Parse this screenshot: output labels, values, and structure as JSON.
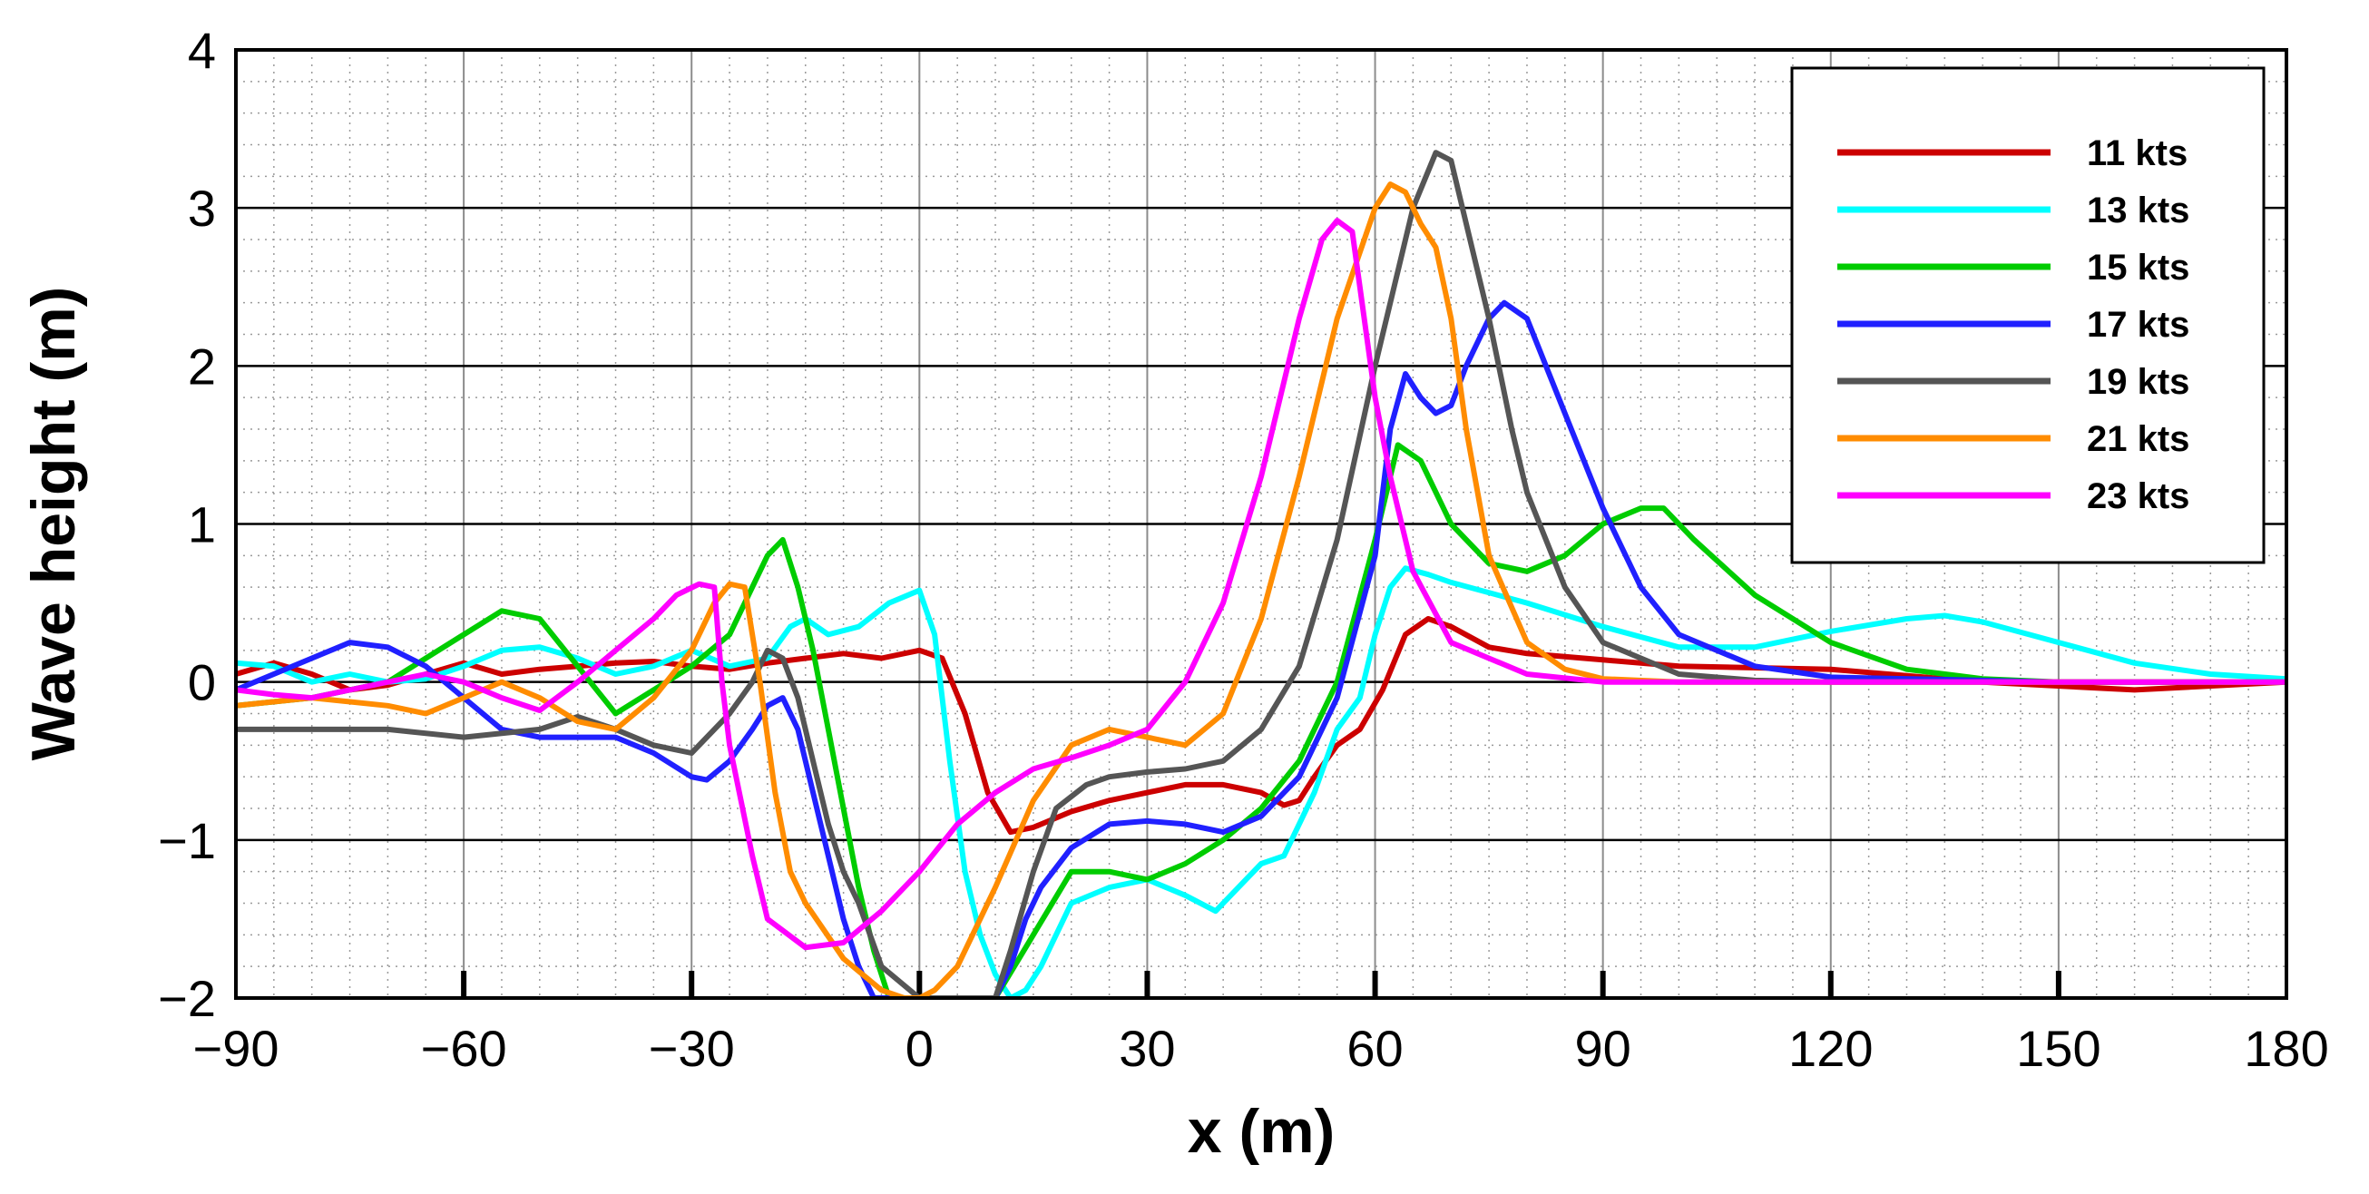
{
  "chart_data": {
    "type": "line",
    "title": "",
    "xlabel": "x (m)",
    "ylabel": "Wave height (m)",
    "xlim": [
      -90,
      180
    ],
    "ylim": [
      -2,
      4
    ],
    "xticks": [
      -90,
      -60,
      -30,
      0,
      30,
      60,
      90,
      120,
      150,
      180
    ],
    "yticks": [
      -2,
      -1,
      0,
      1,
      2,
      3,
      4
    ],
    "xtick_labels": [
      "−90",
      "−60",
      "−30",
      "0",
      "30",
      "60",
      "90",
      "120",
      "150",
      "180"
    ],
    "ytick_labels": [
      "−2",
      "−1",
      "0",
      "1",
      "2",
      "3",
      "4"
    ],
    "grid": true,
    "legend_position": "top-right",
    "series": [
      {
        "name": "11 kts",
        "color": "#cc0000",
        "x": [
          -90,
          -85,
          -80,
          -75,
          -70,
          -65,
          -60,
          -55,
          -50,
          -45,
          -40,
          -35,
          -30,
          -25,
          -20,
          -15,
          -10,
          -5,
          0,
          3,
          6,
          9,
          12,
          15,
          20,
          25,
          30,
          35,
          40,
          45,
          48,
          50,
          52,
          55,
          58,
          61,
          64,
          67,
          70,
          75,
          80,
          90,
          100,
          120,
          140,
          160,
          180
        ],
        "y": [
          0.05,
          0.12,
          0.05,
          -0.05,
          -0.02,
          0.05,
          0.12,
          0.05,
          0.08,
          0.1,
          0.12,
          0.13,
          0.1,
          0.08,
          0.12,
          0.15,
          0.18,
          0.15,
          0.2,
          0.15,
          -0.2,
          -0.7,
          -0.95,
          -0.92,
          -0.82,
          -0.75,
          -0.7,
          -0.65,
          -0.65,
          -0.7,
          -0.78,
          -0.75,
          -0.6,
          -0.4,
          -0.3,
          -0.05,
          0.3,
          0.4,
          0.35,
          0.22,
          0.18,
          0.14,
          0.1,
          0.08,
          0.0,
          -0.05,
          0.0
        ]
      },
      {
        "name": "13 kts",
        "color": "#00ffff",
        "x": [
          -90,
          -85,
          -80,
          -75,
          -70,
          -65,
          -60,
          -55,
          -50,
          -45,
          -40,
          -35,
          -30,
          -25,
          -20,
          -17,
          -15,
          -12,
          -8,
          -4,
          0,
          2,
          4,
          6,
          8,
          10,
          12,
          14,
          16,
          20,
          25,
          30,
          35,
          39,
          42,
          45,
          48,
          52,
          55,
          58,
          60,
          62,
          64,
          67,
          70,
          80,
          90,
          100,
          110,
          120,
          130,
          135,
          140,
          150,
          160,
          170,
          180
        ],
        "y": [
          0.12,
          0.1,
          0.0,
          0.05,
          0.0,
          0.02,
          0.1,
          0.2,
          0.22,
          0.15,
          0.05,
          0.1,
          0.2,
          0.1,
          0.15,
          0.35,
          0.4,
          0.3,
          0.35,
          0.5,
          0.58,
          0.3,
          -0.5,
          -1.2,
          -1.6,
          -1.85,
          -2.0,
          -1.95,
          -1.8,
          -1.4,
          -1.3,
          -1.25,
          -1.35,
          -1.45,
          -1.3,
          -1.15,
          -1.1,
          -0.7,
          -0.3,
          -0.1,
          0.3,
          0.6,
          0.72,
          0.68,
          0.63,
          0.5,
          0.35,
          0.22,
          0.22,
          0.32,
          0.4,
          0.42,
          0.38,
          0.25,
          0.12,
          0.05,
          0.02
        ]
      },
      {
        "name": "15 kts",
        "color": "#00cc00",
        "x": [
          -90,
          -80,
          -70,
          -60,
          -55,
          -50,
          -45,
          -40,
          -35,
          -30,
          -25,
          -20,
          -18,
          -16,
          -14,
          -12,
          -10,
          -8,
          -6,
          -4,
          0,
          10,
          15,
          20,
          25,
          30,
          35,
          40,
          45,
          50,
          55,
          60,
          63,
          66,
          70,
          75,
          80,
          85,
          90,
          95,
          98,
          102,
          110,
          120,
          130,
          140,
          150,
          160,
          170,
          180
        ],
        "y": [
          -0.15,
          -0.1,
          0.0,
          0.3,
          0.45,
          0.4,
          0.1,
          -0.2,
          -0.05,
          0.1,
          0.3,
          0.8,
          0.9,
          0.6,
          0.2,
          -0.3,
          -0.8,
          -1.3,
          -1.7,
          -2.0,
          -2.0,
          -2.0,
          -1.6,
          -1.2,
          -1.2,
          -1.25,
          -1.15,
          -1.0,
          -0.8,
          -0.5,
          0.0,
          0.9,
          1.5,
          1.4,
          1.0,
          0.75,
          0.7,
          0.8,
          1.0,
          1.1,
          1.1,
          0.9,
          0.55,
          0.25,
          0.08,
          0.02,
          0.0,
          0.0,
          0.0,
          0.0
        ]
      },
      {
        "name": "17 kts",
        "color": "#2020ff",
        "x": [
          -90,
          -80,
          -75,
          -70,
          -65,
          -60,
          -55,
          -50,
          -45,
          -40,
          -35,
          -30,
          -28,
          -25,
          -22,
          -20,
          -18,
          -16,
          -14,
          -12,
          -10,
          -8,
          -6,
          -4,
          0,
          10,
          12,
          14,
          16,
          20,
          25,
          30,
          35,
          40,
          45,
          50,
          55,
          60,
          62,
          64,
          66,
          68,
          70,
          72,
          75,
          77,
          80,
          85,
          90,
          95,
          100,
          110,
          120,
          150,
          180
        ],
        "y": [
          -0.05,
          0.15,
          0.25,
          0.22,
          0.1,
          -0.1,
          -0.3,
          -0.35,
          -0.35,
          -0.35,
          -0.45,
          -0.6,
          -0.62,
          -0.5,
          -0.3,
          -0.15,
          -0.1,
          -0.3,
          -0.7,
          -1.1,
          -1.5,
          -1.8,
          -2.0,
          -2.0,
          -2.0,
          -2.0,
          -1.8,
          -1.5,
          -1.3,
          -1.05,
          -0.9,
          -0.88,
          -0.9,
          -0.95,
          -0.85,
          -0.6,
          -0.1,
          0.8,
          1.6,
          1.95,
          1.8,
          1.7,
          1.75,
          2.0,
          2.3,
          2.4,
          2.3,
          1.7,
          1.1,
          0.6,
          0.3,
          0.1,
          0.03,
          0.0,
          0.0
        ]
      },
      {
        "name": "19 kts",
        "color": "#555555",
        "x": [
          -90,
          -80,
          -70,
          -60,
          -50,
          -45,
          -40,
          -35,
          -30,
          -25,
          -22,
          -20,
          -18,
          -16,
          -14,
          -12,
          -10,
          -8,
          -5,
          0,
          5,
          10,
          12,
          15,
          18,
          22,
          25,
          30,
          35,
          40,
          45,
          50,
          55,
          60,
          65,
          68,
          70,
          72,
          75,
          78,
          80,
          85,
          90,
          100,
          110,
          120,
          150,
          180
        ],
        "y": [
          -0.3,
          -0.3,
          -0.3,
          -0.35,
          -0.3,
          -0.22,
          -0.3,
          -0.4,
          -0.45,
          -0.2,
          0.0,
          0.2,
          0.15,
          -0.1,
          -0.5,
          -0.9,
          -1.2,
          -1.4,
          -1.8,
          -2.0,
          -2.0,
          -2.0,
          -1.7,
          -1.2,
          -0.8,
          -0.65,
          -0.6,
          -0.57,
          -0.55,
          -0.5,
          -0.3,
          0.1,
          0.9,
          2.0,
          3.0,
          3.35,
          3.3,
          2.9,
          2.3,
          1.6,
          1.2,
          0.6,
          0.25,
          0.05,
          0.01,
          0.0,
          0.0,
          0.0
        ]
      },
      {
        "name": "21 kts",
        "color": "#ff8c00",
        "x": [
          -90,
          -80,
          -70,
          -65,
          -60,
          -55,
          -50,
          -45,
          -40,
          -35,
          -30,
          -27,
          -25,
          -23,
          -21,
          -19,
          -17,
          -15,
          -10,
          -5,
          -2,
          0,
          2,
          5,
          10,
          15,
          20,
          25,
          30,
          35,
          40,
          45,
          50,
          55,
          60,
          62,
          64,
          66,
          68,
          70,
          72,
          75,
          80,
          85,
          90,
          100,
          120,
          150,
          180
        ],
        "y": [
          -0.15,
          -0.1,
          -0.15,
          -0.2,
          -0.1,
          0.0,
          -0.1,
          -0.25,
          -0.3,
          -0.1,
          0.2,
          0.5,
          0.62,
          0.6,
          0.0,
          -0.7,
          -1.2,
          -1.4,
          -1.75,
          -1.95,
          -2.0,
          -2.0,
          -1.95,
          -1.8,
          -1.3,
          -0.75,
          -0.4,
          -0.3,
          -0.35,
          -0.4,
          -0.2,
          0.4,
          1.3,
          2.3,
          3.0,
          3.15,
          3.1,
          2.9,
          2.75,
          2.3,
          1.6,
          0.8,
          0.25,
          0.08,
          0.02,
          0.0,
          0.0,
          0.0,
          0.0
        ]
      },
      {
        "name": "23 kts",
        "color": "#ff00ff",
        "x": [
          -90,
          -85,
          -80,
          -75,
          -70,
          -65,
          -60,
          -55,
          -50,
          -45,
          -40,
          -35,
          -32,
          -29,
          -27,
          -26,
          -25,
          -22,
          -20,
          -15,
          -10,
          -5,
          0,
          5,
          10,
          15,
          20,
          25,
          30,
          35,
          40,
          45,
          50,
          53,
          55,
          57,
          58,
          60,
          62,
          65,
          70,
          80,
          90,
          120,
          150,
          180
        ],
        "y": [
          -0.05,
          -0.08,
          -0.1,
          -0.05,
          0.0,
          0.05,
          0.0,
          -0.1,
          -0.18,
          0.0,
          0.2,
          0.4,
          0.55,
          0.62,
          0.6,
          0.0,
          -0.4,
          -1.1,
          -1.5,
          -1.68,
          -1.65,
          -1.45,
          -1.2,
          -0.9,
          -0.7,
          -0.55,
          -0.48,
          -0.4,
          -0.3,
          0.0,
          0.5,
          1.3,
          2.3,
          2.8,
          2.92,
          2.85,
          2.5,
          1.8,
          1.3,
          0.7,
          0.25,
          0.05,
          0.0,
          0.0,
          0.0,
          0.0
        ]
      }
    ]
  }
}
